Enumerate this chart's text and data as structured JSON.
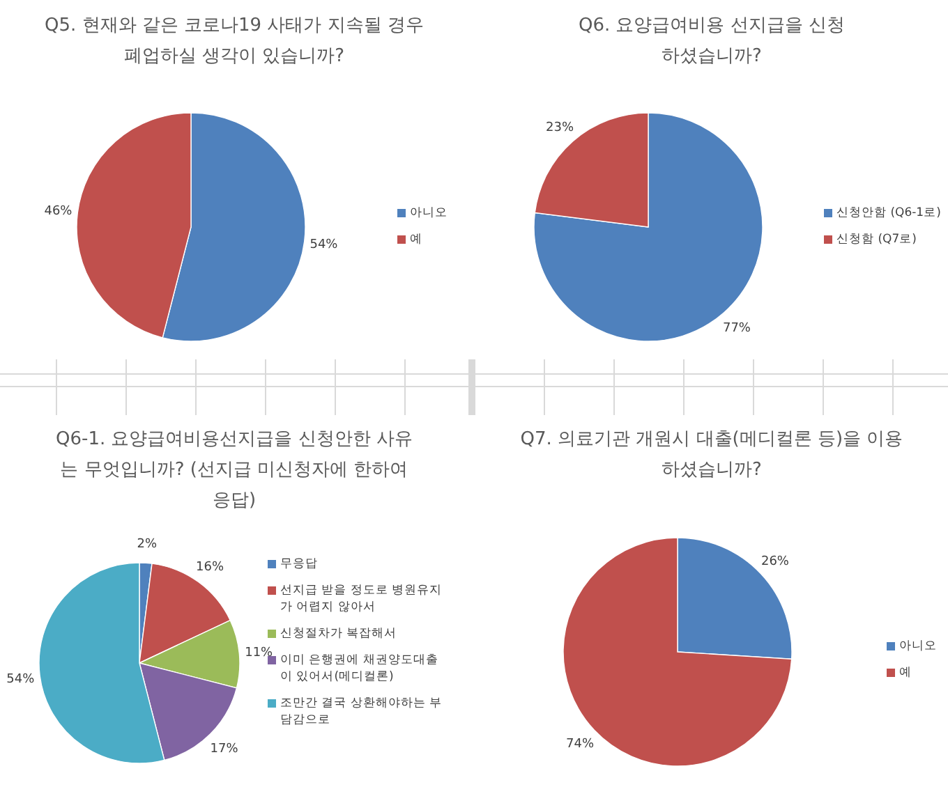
{
  "chart_data": [
    {
      "type": "pie",
      "title": "Q5. 현재와 같은 코로나19 사태가 지속될 경우 폐업하실 생각이 있습니까?",
      "categories": [
        "아니오",
        "예"
      ],
      "values": [
        54,
        46
      ],
      "colors": [
        "#4f81bd",
        "#c0504d"
      ],
      "value_labels": [
        "54%",
        "46%"
      ],
      "legend": "right"
    },
    {
      "type": "pie",
      "title": "Q6. 요양급여비용 선지급을 신청하셨습니까?",
      "categories": [
        "신청안함 (Q6-1로)",
        "신청함 (Q7로)"
      ],
      "values": [
        77,
        23
      ],
      "colors": [
        "#4f81bd",
        "#c0504d"
      ],
      "value_labels": [
        "77%",
        "23%"
      ],
      "legend": "right"
    },
    {
      "type": "pie",
      "title": "Q6-1. 요양급여비용선지급을 신청안한 사유는 무엇입니까? (선지급 미신청자에 한하여 응답)",
      "categories": [
        "무응답",
        "선지급 받을 정도로 병원유지가 어렵지 않아서",
        "신청절차가 복잡해서",
        "이미 은행권에 채권양도대출이 있어서(메디컬론)",
        "조만간 결국 상환해야하는 부담감으로"
      ],
      "values": [
        2,
        16,
        11,
        17,
        54
      ],
      "colors": [
        "#4f81bd",
        "#c0504d",
        "#9bbb59",
        "#8064a2",
        "#4bacc6"
      ],
      "value_labels": [
        "2%",
        "16%",
        "11%",
        "17%",
        "54%"
      ],
      "legend": "right"
    },
    {
      "type": "pie",
      "title": "Q7. 의료기관 개원시 대출(메디컬론 등)을 이용하셨습니까?",
      "categories": [
        "아니오",
        "예"
      ],
      "values": [
        26,
        74
      ],
      "colors": [
        "#4f81bd",
        "#c0504d"
      ],
      "value_labels": [
        "26%",
        "74%"
      ],
      "legend": "right"
    }
  ]
}
